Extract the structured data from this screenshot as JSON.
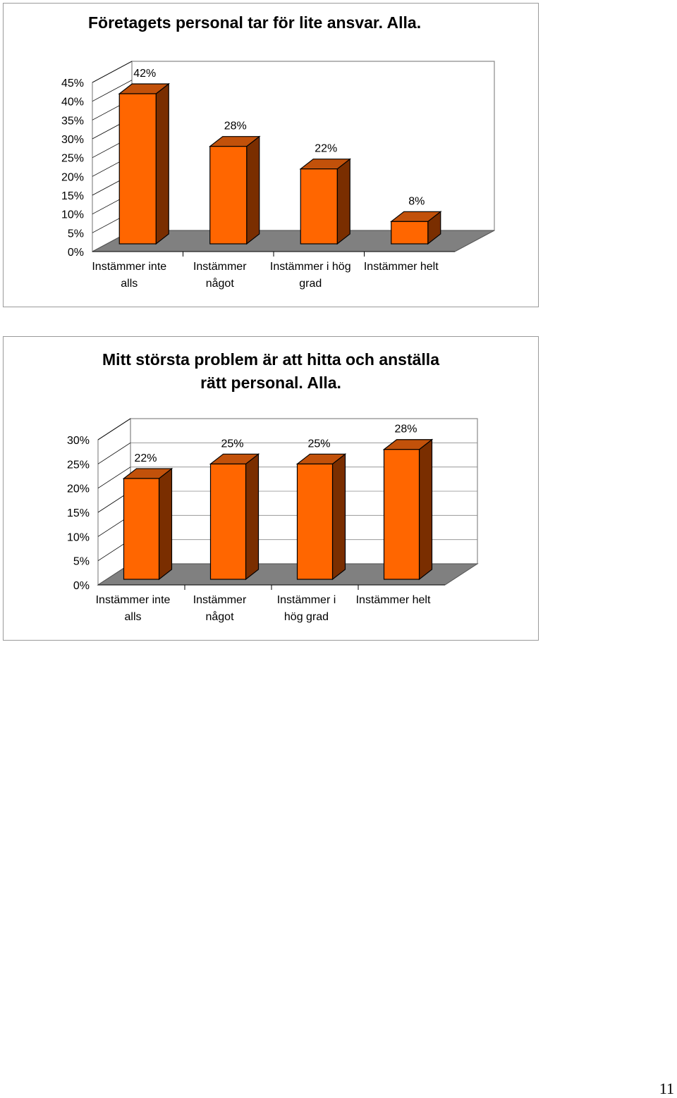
{
  "page_number": "11",
  "colors": {
    "bar_front": "#ff6600",
    "bar_side": "#7a2e00",
    "bar_top": "#c2510a",
    "floor": "#808080",
    "gridline": "#000000"
  },
  "chart_data": [
    {
      "type": "bar",
      "title": "Företagets personal tar för lite ansvar. Alla.",
      "categories": [
        [
          "Instämmer inte",
          "alls"
        ],
        [
          "Instämmer",
          "något"
        ],
        [
          "Instämmer i hög",
          "grad"
        ],
        [
          "Instämmer helt"
        ]
      ],
      "values": [
        42,
        28,
        22,
        8
      ],
      "data_labels": [
        "42%",
        "28%",
        "22%",
        "8%"
      ],
      "y_ticks": [
        "0%",
        "5%",
        "10%",
        "15%",
        "20%",
        "25%",
        "30%",
        "35%",
        "40%",
        "45%"
      ],
      "ylim": [
        0,
        45
      ],
      "grid": false,
      "style": "3d"
    },
    {
      "type": "bar",
      "title": [
        "Mitt största problem är att hitta och anställa",
        "rätt personal. Alla."
      ],
      "categories": [
        [
          "Instämmer inte",
          "alls"
        ],
        [
          "Instämmer",
          "något"
        ],
        [
          "Instämmer i",
          "hög grad"
        ],
        [
          "Instämmer helt"
        ]
      ],
      "values": [
        22,
        25,
        25,
        28
      ],
      "data_labels": [
        "22%",
        "25%",
        "25%",
        "28%"
      ],
      "y_ticks": [
        "0%",
        "5%",
        "10%",
        "15%",
        "20%",
        "25%",
        "30%"
      ],
      "ylim": [
        0,
        30
      ],
      "grid": true,
      "style": "3d"
    }
  ]
}
